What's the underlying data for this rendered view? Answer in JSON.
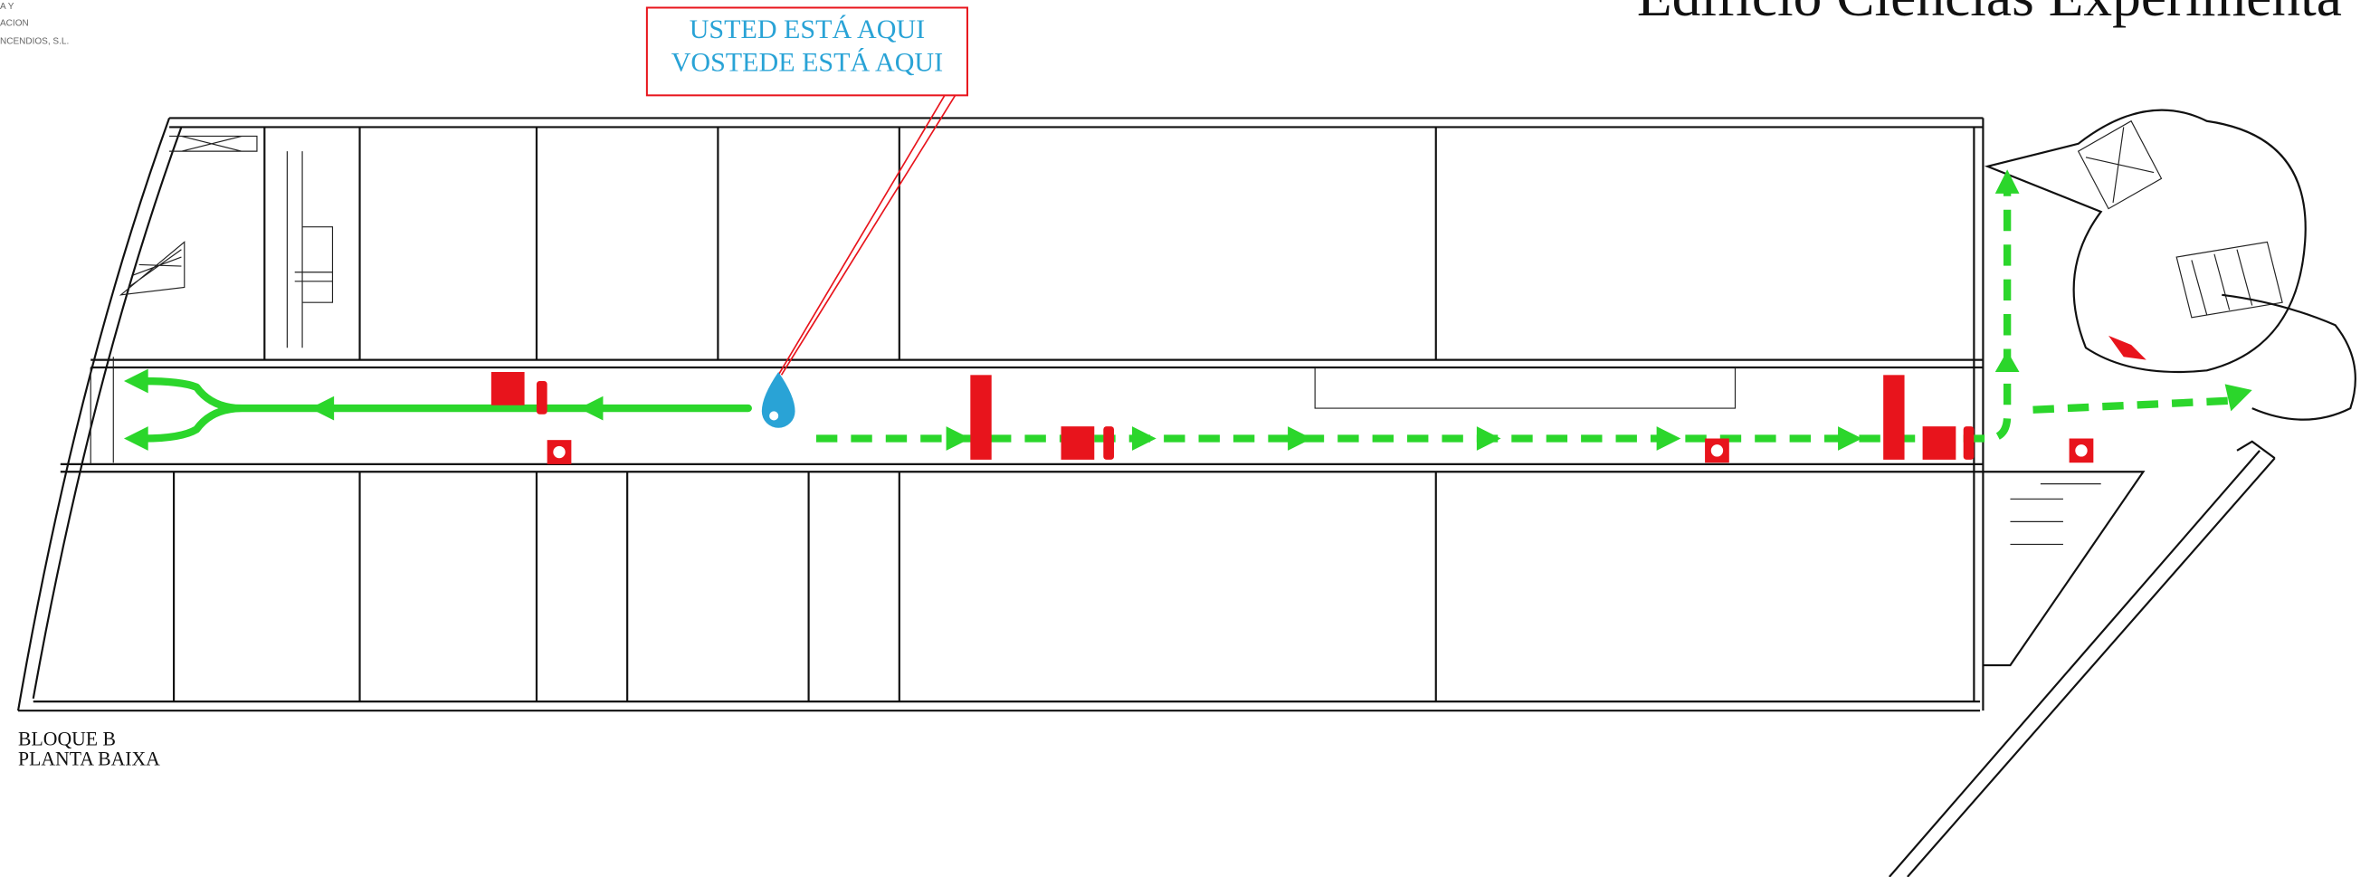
{
  "header": {
    "company_lines": [
      "A Y",
      "ACION",
      "NCENDIOS, S.L."
    ],
    "title": "Edificio Ciencias Experimenta"
  },
  "callout": {
    "lines": [
      "USTED ESTÁ AQUI",
      "VOSTEDE ESTÁ AQUI"
    ]
  },
  "footer": {
    "lines": [
      "BLOQUE B",
      "PLANTA BAIXA"
    ]
  }
}
